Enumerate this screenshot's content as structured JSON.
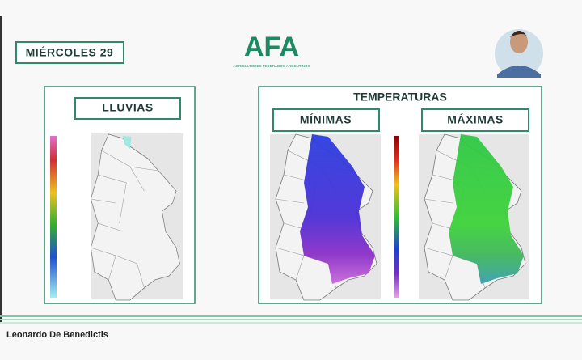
{
  "header": {
    "date": "MIÉRCOLES 29",
    "logo": "AFA",
    "logo_subtitle": "AGRICULTORES FEDERADOS ARGENTINOS"
  },
  "panels": {
    "rain": {
      "title": "LLUVIAS"
    },
    "temperatures": {
      "title": "TEMPERATURAS",
      "min": "MÍNIMAS",
      "max": "MÁXIMAS"
    }
  },
  "footer": {
    "speaker": "Leonardo De Benedictis"
  }
}
